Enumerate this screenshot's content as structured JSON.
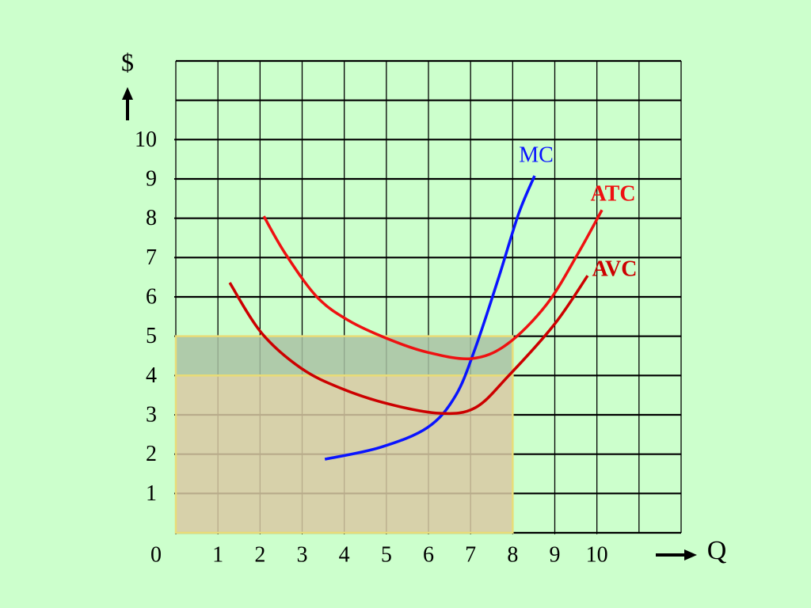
{
  "chart_data": {
    "type": "line",
    "y_label": "$",
    "x_label": "Q",
    "xlim": [
      0,
      12
    ],
    "ylim": [
      0,
      12
    ],
    "xticks": [
      0,
      1,
      2,
      3,
      4,
      5,
      6,
      7,
      8,
      9,
      10
    ],
    "yticks": [
      1,
      2,
      3,
      4,
      5,
      6,
      7,
      8,
      9,
      10
    ],
    "grid": true,
    "areas": [
      {
        "color": "#a9c2a3",
        "x": [
          0,
          8
        ],
        "y": [
          4,
          5
        ]
      },
      {
        "color": "#d8c9a3",
        "x": [
          0,
          8
        ],
        "y": [
          0,
          4
        ]
      }
    ],
    "series": [
      {
        "name": "MC",
        "color": "#0a14ff",
        "x": [
          3.54,
          4.85,
          5.98,
          6.64,
          7.11,
          7.67,
          8.14,
          8.52
        ],
        "values": [
          1.87,
          2.17,
          2.68,
          3.48,
          4.69,
          6.5,
          8.11,
          9.08
        ]
      },
      {
        "name": "ATC",
        "color": "#ee1111",
        "x": [
          2.09,
          2.6,
          3.35,
          4.1,
          5.04,
          5.98,
          7.02,
          7.86,
          8.8,
          9.55,
          10.12
        ],
        "values": [
          8.05,
          7.1,
          6.0,
          5.4,
          4.93,
          4.59,
          4.43,
          4.79,
          5.8,
          7.1,
          8.21
        ]
      },
      {
        "name": "AVC",
        "color": "#cc0000",
        "x": [
          1.28,
          2.03,
          2.97,
          3.91,
          5.04,
          6.26,
          7.11,
          7.9,
          8.99,
          9.78
        ],
        "values": [
          6.36,
          5.09,
          4.19,
          3.68,
          3.28,
          3.04,
          3.18,
          3.99,
          5.3,
          6.54
        ]
      }
    ]
  }
}
